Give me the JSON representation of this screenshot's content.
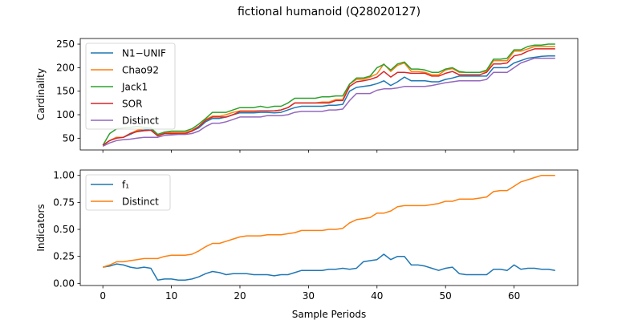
{
  "title": "fictional humanoid (Q28020127)",
  "chart_data": [
    {
      "type": "line",
      "ylabel": "Cardinality",
      "xlabel": "",
      "xlim": [
        -3.3,
        69.3
      ],
      "ylim": [
        25,
        262
      ],
      "xticks": [
        0,
        10,
        20,
        30,
        40,
        50,
        60
      ],
      "xtick_labels_visible": false,
      "yticks": [
        50,
        100,
        150,
        200,
        250
      ],
      "legend_position": "upper-left",
      "series": [
        {
          "name": "N1−UNIF",
          "color": "#1f77b4",
          "values": [
            35,
            45,
            52,
            52,
            58,
            65,
            67,
            70,
            55,
            60,
            60,
            60,
            60,
            65,
            72,
            85,
            92,
            92,
            95,
            100,
            104,
            104,
            104,
            105,
            105,
            104,
            105,
            110,
            115,
            118,
            118,
            118,
            118,
            120,
            120,
            122,
            150,
            158,
            160,
            162,
            166,
            172,
            162,
            170,
            180,
            172,
            172,
            172,
            170,
            170,
            175,
            178,
            182,
            182,
            182,
            182,
            182,
            200,
            200,
            200,
            210,
            215,
            220,
            222,
            224,
            225,
            225
          ]
        },
        {
          "name": "Chao92",
          "color": "#ff7f0e",
          "values": [
            35,
            45,
            52,
            52,
            60,
            67,
            70,
            72,
            57,
            62,
            62,
            62,
            62,
            67,
            75,
            90,
            97,
            97,
            100,
            105,
            108,
            108,
            108,
            108,
            108,
            108,
            110,
            115,
            125,
            125,
            125,
            125,
            127,
            127,
            132,
            132,
            165,
            175,
            175,
            180,
            187,
            208,
            192,
            205,
            210,
            192,
            192,
            190,
            185,
            185,
            195,
            198,
            190,
            190,
            190,
            190,
            192,
            215,
            215,
            215,
            235,
            235,
            240,
            245,
            245,
            245,
            245
          ]
        },
        {
          "name": "Jack1",
          "color": "#2ca02c",
          "values": [
            35,
            60,
            70,
            72,
            73,
            75,
            73,
            72,
            58,
            63,
            65,
            65,
            65,
            70,
            80,
            92,
            105,
            105,
            105,
            110,
            115,
            115,
            115,
            118,
            115,
            118,
            118,
            125,
            135,
            135,
            135,
            135,
            138,
            138,
            140,
            140,
            165,
            178,
            178,
            182,
            200,
            207,
            195,
            208,
            212,
            197,
            197,
            195,
            190,
            190,
            197,
            200,
            192,
            190,
            190,
            190,
            195,
            218,
            218,
            220,
            238,
            238,
            245,
            248,
            248,
            250,
            250
          ]
        },
        {
          "name": "SOR",
          "color": "#d62728",
          "values": [
            35,
            45,
            50,
            52,
            60,
            64,
            66,
            67,
            55,
            60,
            60,
            60,
            60,
            65,
            75,
            88,
            95,
            95,
            95,
            100,
            107,
            107,
            107,
            108,
            108,
            108,
            110,
            115,
            125,
            125,
            125,
            125,
            125,
            125,
            130,
            130,
            160,
            170,
            172,
            175,
            180,
            192,
            180,
            190,
            190,
            188,
            188,
            188,
            182,
            182,
            188,
            192,
            185,
            185,
            185,
            185,
            190,
            208,
            208,
            210,
            225,
            228,
            235,
            240,
            240,
            240,
            240
          ]
        },
        {
          "name": "Distinct",
          "color": "#9467bd",
          "values": [
            33,
            40,
            45,
            47,
            48,
            50,
            52,
            52,
            52,
            56,
            57,
            58,
            58,
            60,
            65,
            75,
            82,
            82,
            85,
            90,
            95,
            95,
            95,
            95,
            98,
            98,
            98,
            100,
            105,
            107,
            107,
            107,
            107,
            110,
            110,
            112,
            130,
            145,
            145,
            145,
            152,
            155,
            155,
            157,
            160,
            160,
            160,
            160,
            162,
            165,
            168,
            170,
            172,
            172,
            172,
            172,
            175,
            190,
            190,
            190,
            200,
            210,
            215,
            220,
            220,
            220,
            220
          ]
        }
      ]
    },
    {
      "type": "line",
      "ylabel": "Indicators",
      "xlabel": "Sample Periods",
      "xlim": [
        -3.3,
        69.3
      ],
      "ylim": [
        -0.02,
        1.05
      ],
      "xticks": [
        0,
        10,
        20,
        30,
        40,
        50,
        60
      ],
      "yticks": [
        0.0,
        0.25,
        0.5,
        0.75,
        1.0
      ],
      "ytick_labels": [
        "0.00",
        "0.25",
        "0.50",
        "0.75",
        "1.00"
      ],
      "legend_position": "upper-left",
      "series": [
        {
          "name": "f₁",
          "color": "#1f77b4",
          "values": [
            0.15,
            0.16,
            0.18,
            0.17,
            0.15,
            0.14,
            0.15,
            0.14,
            0.03,
            0.04,
            0.04,
            0.03,
            0.03,
            0.04,
            0.06,
            0.09,
            0.11,
            0.1,
            0.08,
            0.09,
            0.09,
            0.09,
            0.08,
            0.08,
            0.08,
            0.07,
            0.08,
            0.08,
            0.1,
            0.12,
            0.12,
            0.12,
            0.12,
            0.13,
            0.13,
            0.14,
            0.13,
            0.14,
            0.2,
            0.21,
            0.22,
            0.27,
            0.22,
            0.25,
            0.25,
            0.17,
            0.17,
            0.16,
            0.14,
            0.12,
            0.14,
            0.15,
            0.09,
            0.08,
            0.08,
            0.08,
            0.08,
            0.13,
            0.13,
            0.12,
            0.17,
            0.13,
            0.14,
            0.14,
            0.13,
            0.13,
            0.12
          ]
        },
        {
          "name": "Distinct",
          "color": "#ff7f0e",
          "values": [
            0.15,
            0.17,
            0.2,
            0.2,
            0.21,
            0.22,
            0.23,
            0.23,
            0.23,
            0.25,
            0.26,
            0.26,
            0.26,
            0.27,
            0.3,
            0.34,
            0.37,
            0.37,
            0.39,
            0.41,
            0.43,
            0.44,
            0.44,
            0.44,
            0.45,
            0.45,
            0.45,
            0.46,
            0.47,
            0.49,
            0.49,
            0.49,
            0.49,
            0.5,
            0.5,
            0.51,
            0.56,
            0.59,
            0.6,
            0.61,
            0.65,
            0.65,
            0.67,
            0.71,
            0.72,
            0.72,
            0.72,
            0.72,
            0.73,
            0.74,
            0.76,
            0.76,
            0.78,
            0.78,
            0.78,
            0.79,
            0.8,
            0.85,
            0.86,
            0.86,
            0.9,
            0.94,
            0.96,
            0.98,
            1.0,
            1.0,
            1.0
          ]
        }
      ]
    }
  ]
}
